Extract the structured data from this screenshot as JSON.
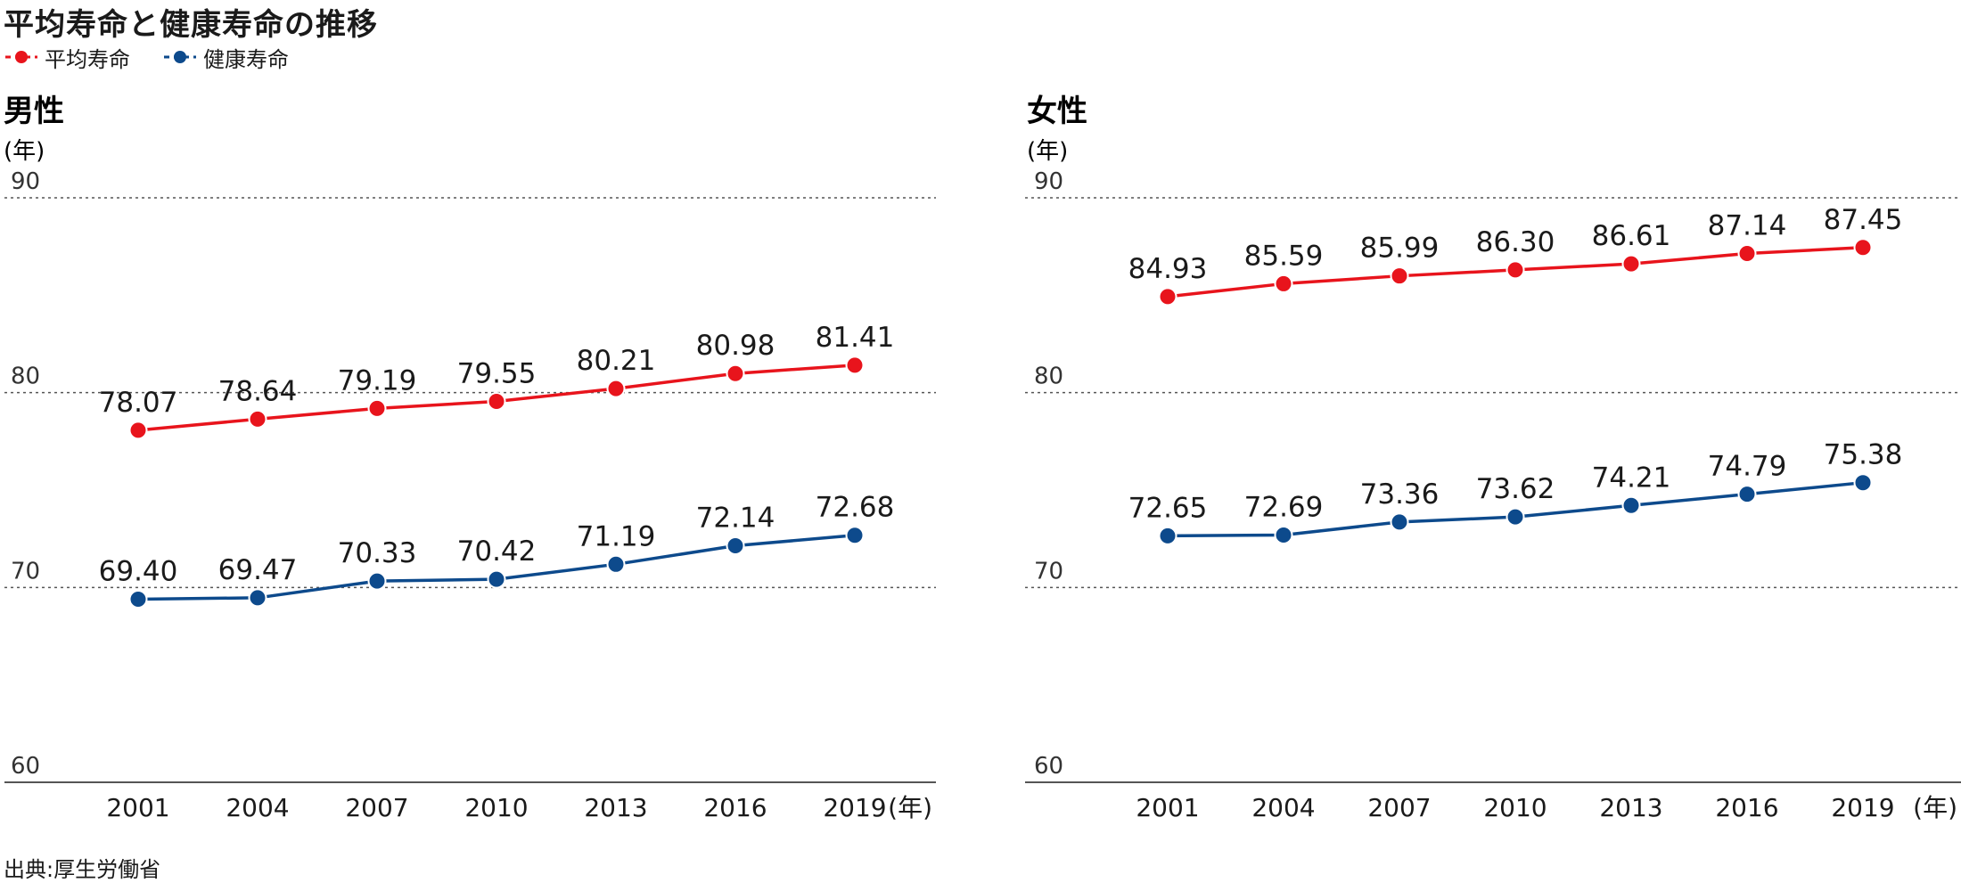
{
  "title": "平均寿命と健康寿命の推移",
  "legend": [
    {
      "label": "平均寿命",
      "color": "#e8141c"
    },
    {
      "label": "健康寿命",
      "color": "#0d4a8c"
    }
  ],
  "source": "出典:厚生労働省",
  "chart_data": [
    {
      "type": "line",
      "title": "男性",
      "ylabel": "(年)",
      "xlabel": "(年)",
      "ylim": [
        60,
        90
      ],
      "yticks": [
        60,
        70,
        80,
        90
      ],
      "categories": [
        "2001",
        "2004",
        "2007",
        "2010",
        "2013",
        "2016",
        "2019"
      ],
      "series": [
        {
          "name": "平均寿命",
          "color": "#e8141c",
          "values": [
            78.07,
            78.64,
            79.19,
            79.55,
            80.21,
            80.98,
            81.41
          ],
          "labels": [
            "78.07",
            "78.64",
            "79.19",
            "79.55",
            "80.21",
            "80.98",
            "81.41"
          ]
        },
        {
          "name": "健康寿命",
          "color": "#0d4a8c",
          "values": [
            69.4,
            69.47,
            70.33,
            70.42,
            71.19,
            72.14,
            72.68
          ],
          "labels": [
            "69.40",
            "69.47",
            "70.33",
            "70.42",
            "71.19",
            "72.14",
            "72.68"
          ]
        }
      ]
    },
    {
      "type": "line",
      "title": "女性",
      "ylabel": "(年)",
      "xlabel": "(年)",
      "ylim": [
        60,
        90
      ],
      "yticks": [
        60,
        70,
        80,
        90
      ],
      "categories": [
        "2001",
        "2004",
        "2007",
        "2010",
        "2013",
        "2016",
        "2019"
      ],
      "series": [
        {
          "name": "平均寿命",
          "color": "#e8141c",
          "values": [
            84.93,
            85.59,
            85.99,
            86.3,
            86.61,
            87.14,
            87.45
          ],
          "labels": [
            "84.93",
            "85.59",
            "85.99",
            "86.30",
            "86.61",
            "87.14",
            "87.45"
          ]
        },
        {
          "name": "健康寿命",
          "color": "#0d4a8c",
          "values": [
            72.65,
            72.69,
            73.36,
            73.62,
            74.21,
            74.79,
            75.38
          ],
          "labels": [
            "72.65",
            "72.69",
            "73.36",
            "73.62",
            "74.21",
            "74.79",
            "75.38"
          ]
        }
      ]
    }
  ]
}
